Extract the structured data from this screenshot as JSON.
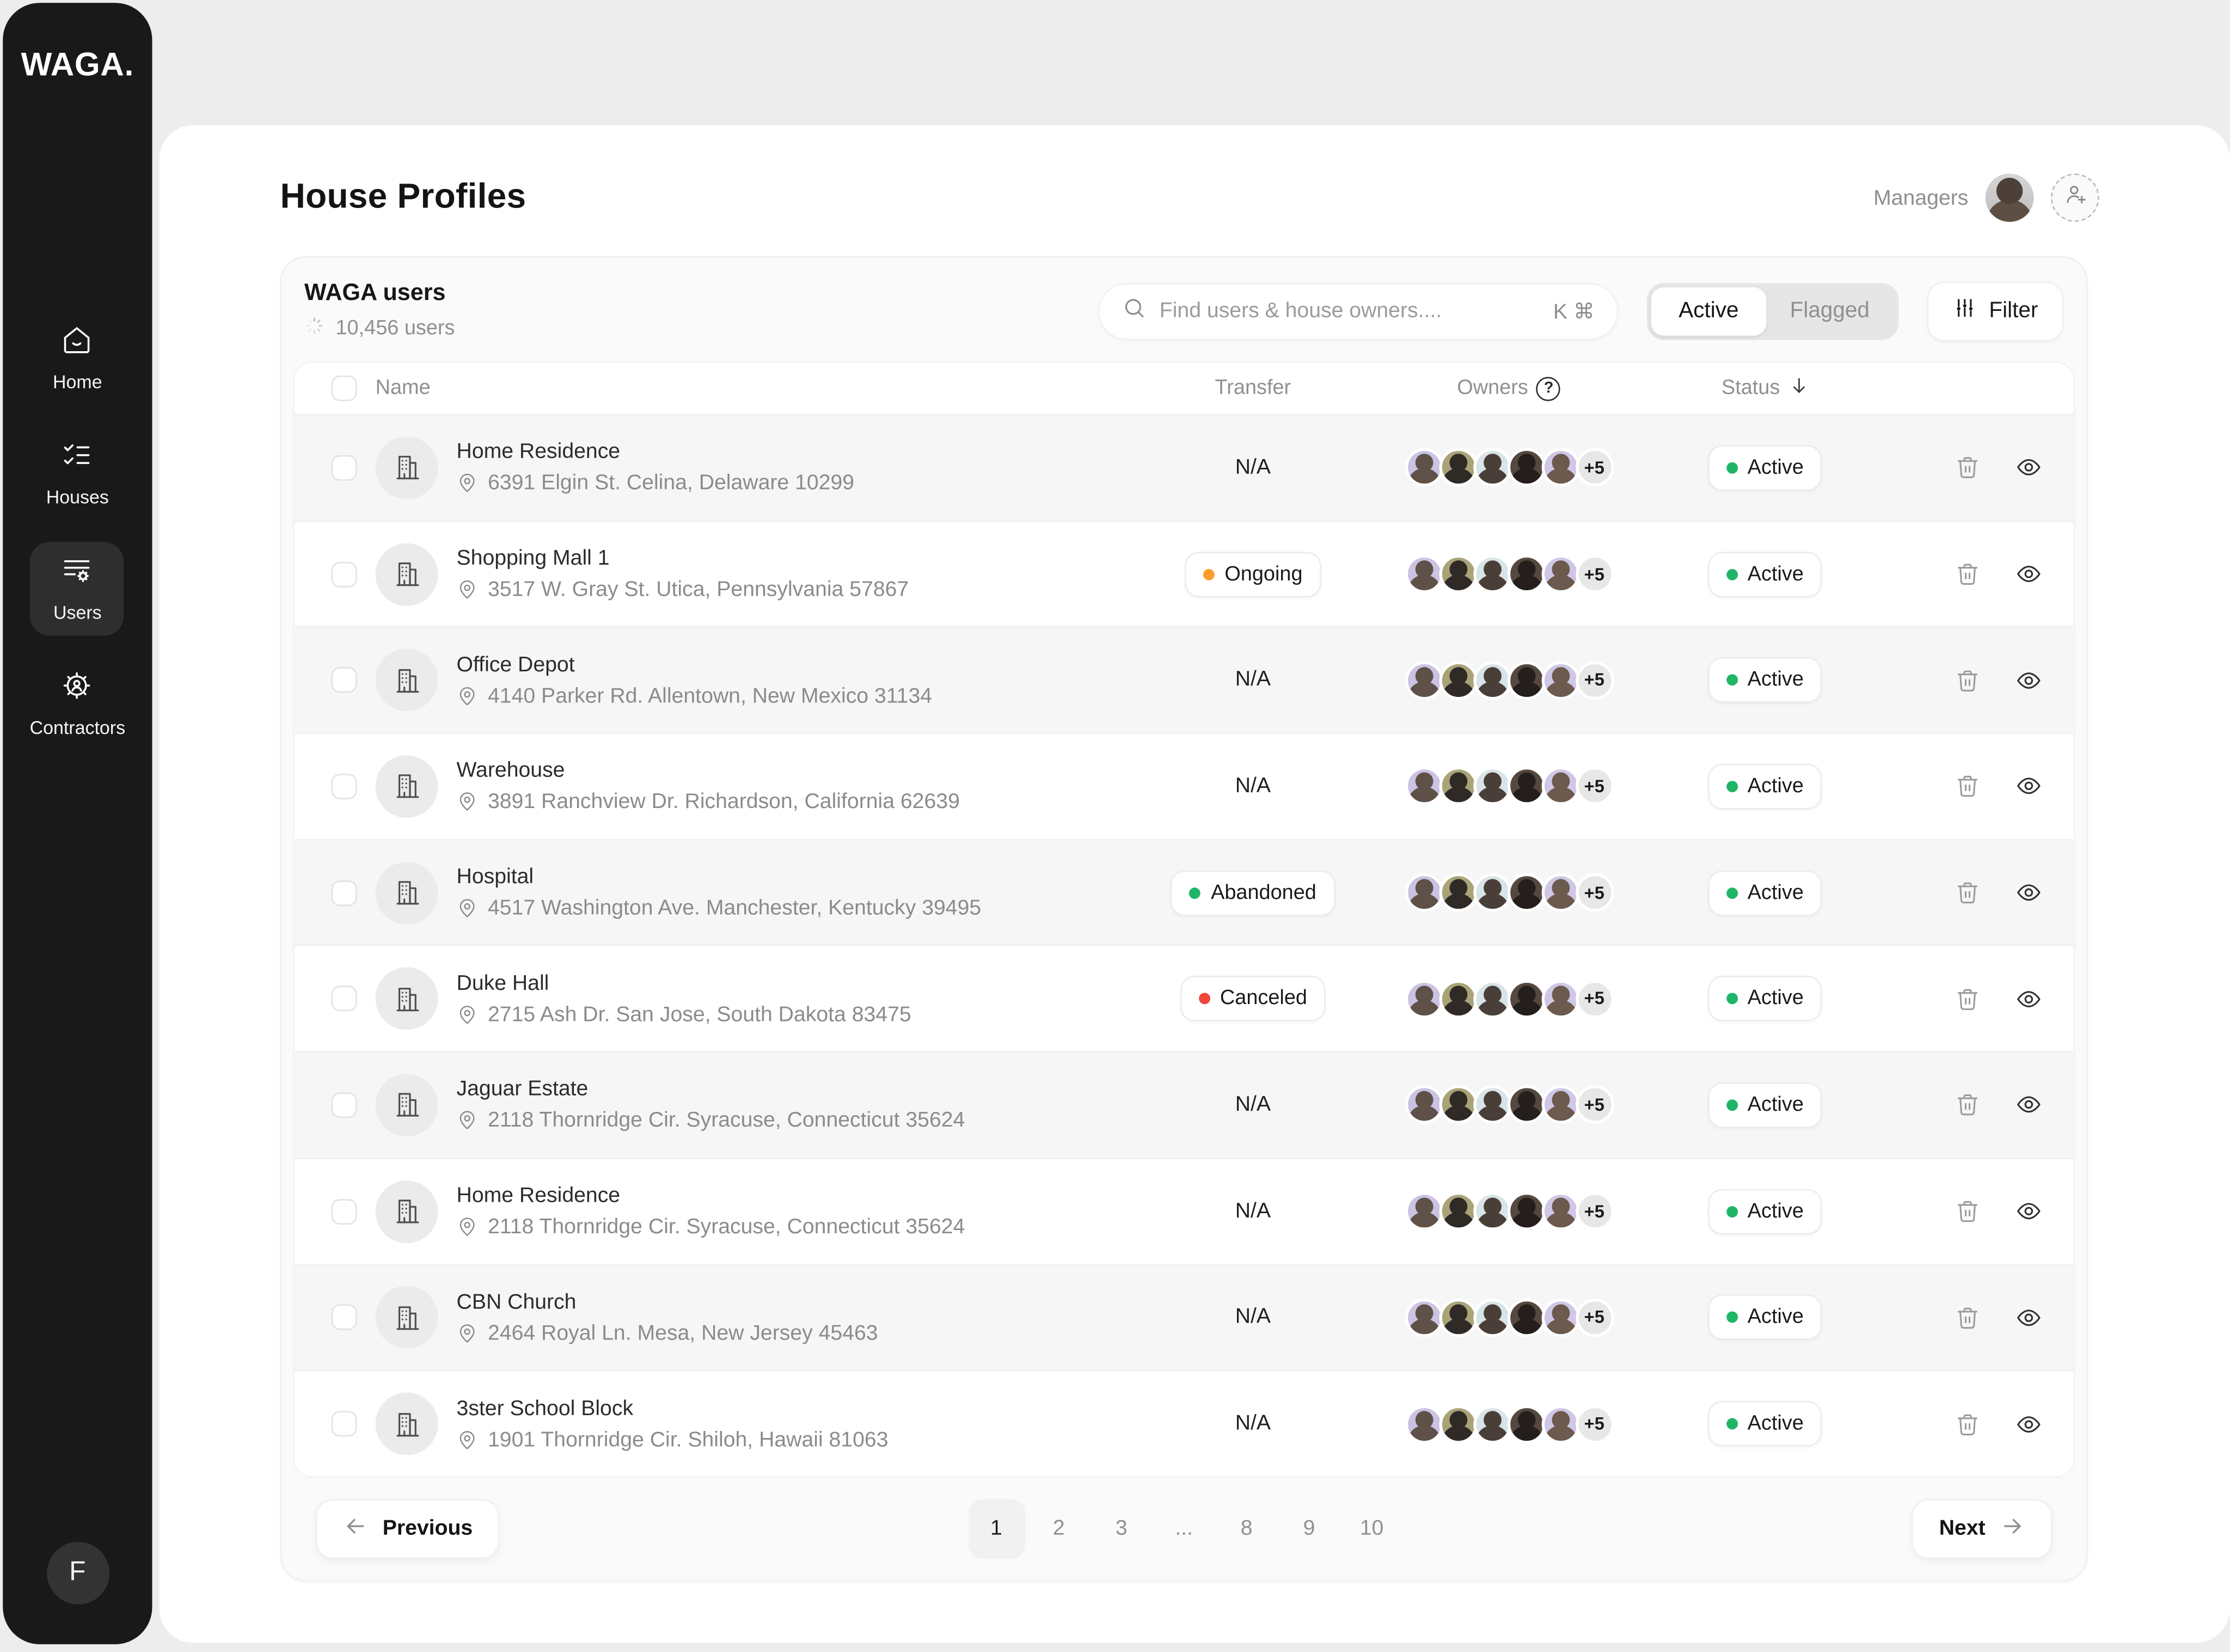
{
  "sidebar": {
    "logo": "WAGA.",
    "items": [
      {
        "label": "Home",
        "icon": "home-icon",
        "active": false
      },
      {
        "label": "Houses",
        "icon": "checklist-icon",
        "active": false
      },
      {
        "label": "Users",
        "icon": "user-list-gear-icon",
        "active": true
      },
      {
        "label": "Contractors",
        "icon": "gear-person-icon",
        "active": false
      }
    ],
    "profile_initial": "F"
  },
  "header": {
    "title": "House Profiles",
    "managers_label": "Managers"
  },
  "panel": {
    "title": "WAGA users",
    "user_count": "10,456 users",
    "search": {
      "placeholder": "Find users & house owners....",
      "shortcut": "K ⌘"
    },
    "toggle": {
      "options": [
        "Active",
        "Flagged"
      ],
      "selected": "Active"
    },
    "filter_label": "Filter"
  },
  "table": {
    "columns": {
      "name": "Name",
      "transfer": "Transfer",
      "owners": "Owners",
      "owners_help": "?",
      "status": "Status"
    },
    "owners_more": "+5",
    "rows": [
      {
        "name": "Home Residence",
        "address": "6391 Elgin St. Celina, Delaware 10299",
        "transfer": "N/A",
        "transfer_type": "na",
        "status": "Active"
      },
      {
        "name": "Shopping Mall 1",
        "address": "3517 W. Gray St. Utica, Pennsylvania 57867",
        "transfer": "Ongoing",
        "transfer_type": "ongoing",
        "status": "Active"
      },
      {
        "name": "Office Depot",
        "address": "4140 Parker Rd. Allentown, New Mexico 31134",
        "transfer": "N/A",
        "transfer_type": "na",
        "status": "Active"
      },
      {
        "name": "Warehouse",
        "address": "3891 Ranchview Dr. Richardson, California 62639",
        "transfer": "N/A",
        "transfer_type": "na",
        "status": "Active"
      },
      {
        "name": "Hospital",
        "address": "4517 Washington Ave. Manchester, Kentucky 39495",
        "transfer": "Abandoned",
        "transfer_type": "abandoned",
        "status": "Active"
      },
      {
        "name": "Duke Hall",
        "address": "2715 Ash Dr. San Jose, South Dakota 83475",
        "transfer": "Canceled",
        "transfer_type": "canceled",
        "status": "Active"
      },
      {
        "name": "Jaguar Estate",
        "address": "2118 Thornridge Cir. Syracuse, Connecticut 35624",
        "transfer": "N/A",
        "transfer_type": "na",
        "status": "Active"
      },
      {
        "name": "Home Residence",
        "address": "2118 Thornridge Cir. Syracuse, Connecticut 35624",
        "transfer": "N/A",
        "transfer_type": "na",
        "status": "Active"
      },
      {
        "name": "CBN Church",
        "address": "2464 Royal Ln. Mesa, New Jersey 45463",
        "transfer": "N/A",
        "transfer_type": "na",
        "status": "Active"
      },
      {
        "name": "3ster School Block",
        "address": "1901 Thornridge Cir. Shiloh, Hawaii 81063",
        "transfer": "N/A",
        "transfer_type": "na",
        "status": "Active"
      }
    ]
  },
  "colors": {
    "ongoing_dot": "#FF9D2E",
    "abandoned_dot": "#1FB567",
    "canceled_dot": "#F2463C",
    "active_dot": "#1FB567"
  },
  "owner_avatar_palette": [
    {
      "bg": "#cbc3e3",
      "head": "#5f5148"
    },
    {
      "bg": "#a8a478",
      "head": "#2f2a26"
    },
    {
      "bg": "#d9e4e8",
      "head": "#4a3f38"
    },
    {
      "bg": "#55483f",
      "head": "#241f1c"
    },
    {
      "bg": "#cfc7e6",
      "head": "#6b5a4d"
    }
  ],
  "pagination": {
    "previous": "Previous",
    "next": "Next",
    "pages": [
      "1",
      "2",
      "3",
      "...",
      "8",
      "9",
      "10"
    ],
    "current": "1"
  }
}
